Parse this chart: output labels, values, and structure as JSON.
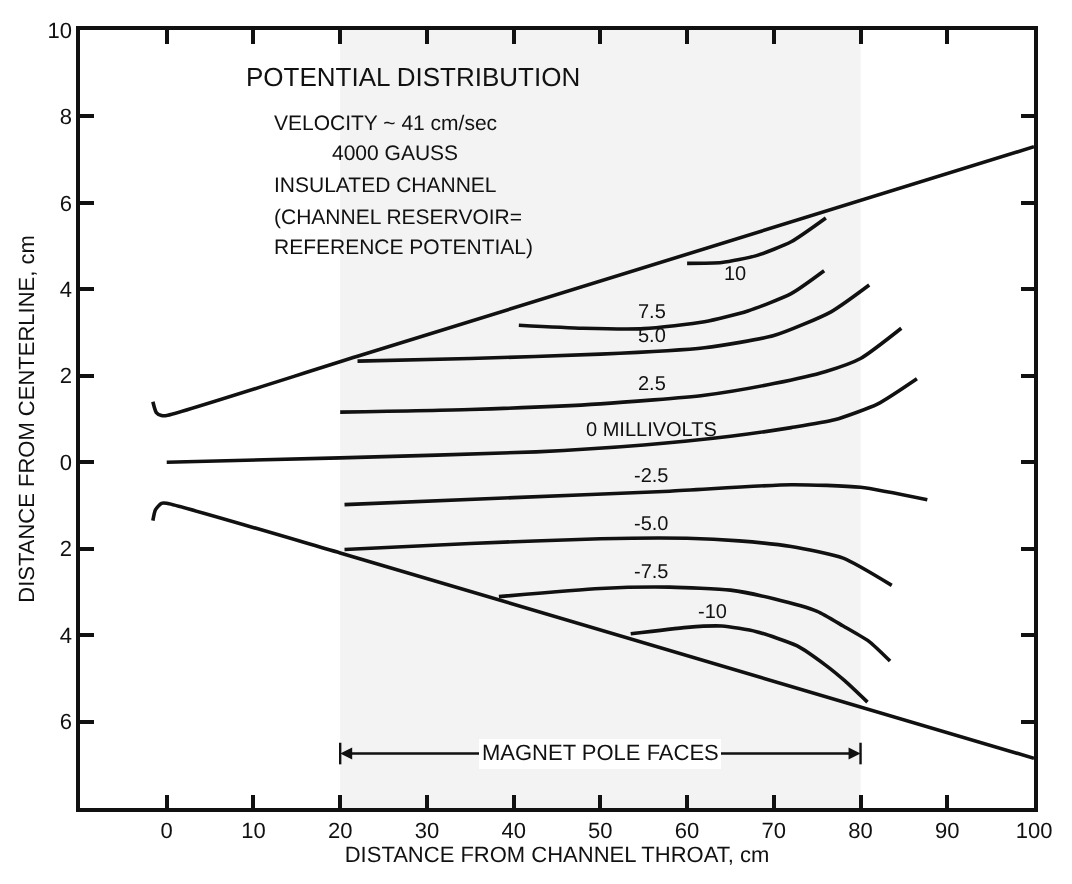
{
  "chart_data": {
    "type": "line",
    "title": "POTENTIAL DISTRIBUTION",
    "annotations": [
      "VELOCITY ~ 41 cm/sec",
      "4000 GAUSS",
      "INSULATED CHANNEL",
      "(CHANNEL RESERVOIR=",
      "REFERENCE POTENTIAL)"
    ],
    "xlabel": "DISTANCE FROM CHANNEL THROAT, cm",
    "ylabel": "DISTANCE FROM CENTERLINE, cm",
    "xlim": [
      -10,
      100
    ],
    "ylim": [
      -8,
      10
    ],
    "xticks": [
      0,
      10,
      20,
      30,
      40,
      50,
      60,
      70,
      80,
      90,
      100
    ],
    "yticks": [
      10,
      8,
      6,
      4,
      2,
      0,
      {
        "value": -2,
        "label": "2"
      },
      {
        "value": -4,
        "label": "4"
      },
      {
        "value": -6,
        "label": "6"
      }
    ],
    "grid": false,
    "legend": false,
    "bands": [
      {
        "axis": "x",
        "from": 20,
        "to": 80,
        "label": "MAGNET POLE FACES",
        "color": "#f3f3f3"
      }
    ],
    "series": [
      {
        "color": "#111111",
        "x": [
          -1.6,
          -1.2,
          -0.6,
          0,
          22,
          100
        ],
        "values": [
          1.4,
          1.15,
          1.08,
          1.08,
          2.45,
          7.3
        ]
      },
      {
        "color": "#111111",
        "x": [
          -1.6,
          -1.3,
          -0.6,
          0,
          20,
          100
        ],
        "values": [
          -1.35,
          -1.1,
          -0.95,
          -0.95,
          -2.1,
          -6.85
        ]
      },
      {
        "name": "10",
        "color": "#111111",
        "x": [
          60,
          64,
          68,
          72,
          76
        ],
        "values": [
          4.6,
          4.62,
          4.78,
          5.1,
          5.65
        ]
      },
      {
        "name": "7.5",
        "color": "#111111",
        "x": [
          40.6,
          48,
          55,
          62,
          67,
          72,
          75.8
        ],
        "values": [
          3.17,
          3.1,
          3.09,
          3.25,
          3.5,
          3.9,
          4.43
        ]
      },
      {
        "name": "5.0",
        "color": "#111111",
        "x": [
          22,
          35,
          50,
          62,
          70,
          76.6,
          81
        ],
        "values": [
          2.34,
          2.4,
          2.5,
          2.65,
          2.93,
          3.48,
          4.1
        ]
      },
      {
        "name": "2.5",
        "color": "#111111",
        "x": [
          20,
          35,
          50,
          62,
          70,
          76,
          80,
          84.7
        ],
        "values": [
          1.16,
          1.22,
          1.35,
          1.55,
          1.82,
          2.1,
          2.4,
          3.1
        ]
      },
      {
        "name": "0 MILLIVOLTS",
        "color": "#111111",
        "x": [
          0,
          20,
          42.6,
          55,
          65,
          72,
          77,
          82,
          86.5
        ],
        "values": [
          0,
          0.1,
          0.24,
          0.4,
          0.6,
          0.8,
          0.98,
          1.35,
          1.93
        ]
      },
      {
        "name": "-2.5",
        "color": "#111111",
        "x": [
          20.5,
          40,
          58,
          72,
          80,
          87.7
        ],
        "values": [
          -0.98,
          -0.82,
          -0.67,
          -0.52,
          -0.58,
          -0.87
        ]
      },
      {
        "name": "-5.0",
        "color": "#111111",
        "x": [
          20.5,
          35,
          50,
          60,
          66,
          72,
          78,
          83.6
        ],
        "values": [
          -2.02,
          -1.88,
          -1.77,
          -1.76,
          -1.82,
          -1.95,
          -2.22,
          -2.85
        ]
      },
      {
        "name": "-7.5",
        "color": "#111111",
        "x": [
          38.3,
          50,
          58,
          65,
          70,
          75,
          78,
          81,
          83.4
        ],
        "values": [
          -3.11,
          -2.92,
          -2.89,
          -2.96,
          -3.16,
          -3.45,
          -3.79,
          -4.15,
          -4.6
        ]
      },
      {
        "name": "-10",
        "color": "#111111",
        "x": [
          53.5,
          60,
          64,
          68,
          72.7,
          76,
          78.2,
          80.8
        ],
        "values": [
          -3.97,
          -3.82,
          -3.79,
          -3.92,
          -4.25,
          -4.7,
          -5.06,
          -5.55
        ]
      }
    ]
  }
}
